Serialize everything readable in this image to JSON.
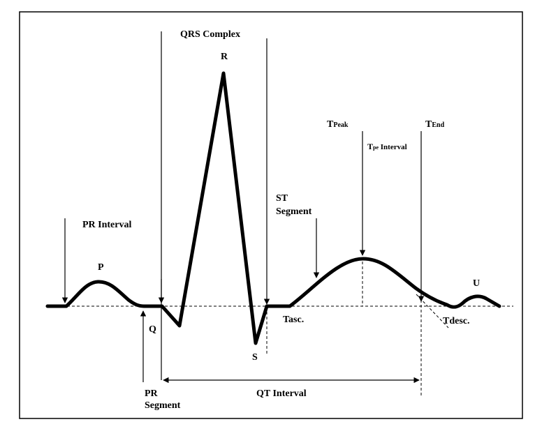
{
  "labels": {
    "qrs_complex": "QRS Complex",
    "r": "R",
    "p": "P",
    "q": "Q",
    "s": "S",
    "u": "U",
    "pr_interval": "PR Interval",
    "pr_segment_line1": "PR",
    "pr_segment_line2": "Segment",
    "st_segment_line1": "ST",
    "st_segment_line2": "Segment",
    "qt_interval": "QT Interval",
    "t_peak_main": "T",
    "t_peak_sub": "Peak",
    "t_end_main": "T",
    "t_end_sub": "End",
    "tpe_main": "T",
    "tpe_sub": "pe",
    "tpe_rest": " Interval",
    "tasc": "Tasc.",
    "tdesc": "Tdesc."
  }
}
